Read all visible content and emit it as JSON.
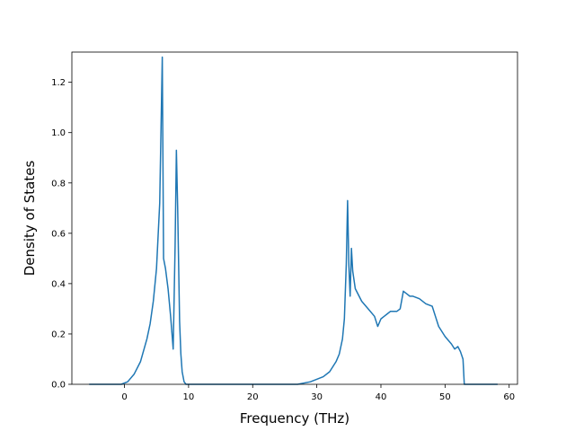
{
  "chart_data": {
    "type": "line",
    "title": "",
    "xlabel": "Frequency (THz)",
    "ylabel": "Density of States",
    "xlim": [
      -8.2,
      61.3
    ],
    "ylim": [
      0.0,
      1.32
    ],
    "xticks": [
      0,
      10,
      20,
      30,
      40,
      50,
      60
    ],
    "yticks": [
      0.0,
      0.2,
      0.4,
      0.6,
      0.8,
      1.0,
      1.2
    ],
    "ytick_labels": [
      "0.0",
      "0.2",
      "0.4",
      "0.6",
      "0.8",
      "1.0",
      "1.2"
    ],
    "grid": false,
    "legend": "none",
    "series": [
      {
        "color": "#1f77b4",
        "x": [
          -5.5,
          -2.0,
          -0.5,
          0.5,
          1.5,
          2.5,
          3.5,
          4.0,
          4.5,
          5.0,
          5.5,
          5.9,
          6.1,
          6.4,
          6.8,
          7.2,
          7.6,
          7.9,
          8.1,
          8.3,
          8.6,
          8.8,
          9.0,
          9.3,
          9.6,
          10.0,
          20.0,
          27.0,
          29.0,
          31.0,
          32.0,
          33.0,
          33.5,
          34.0,
          34.3,
          34.6,
          34.8,
          35.0,
          35.2,
          35.4,
          35.6,
          36.0,
          37.0,
          38.0,
          39.0,
          39.5,
          40.0,
          40.5,
          41.0,
          41.5,
          42.0,
          42.5,
          43.0,
          43.5,
          44.0,
          44.5,
          45.0,
          46.0,
          47.0,
          48.0,
          48.5,
          49.0,
          50.0,
          51.0,
          51.5,
          52.0,
          52.4,
          52.8,
          53.0,
          53.5,
          58.2
        ],
        "y": [
          0.0,
          0.0,
          0.0,
          0.01,
          0.04,
          0.09,
          0.18,
          0.24,
          0.33,
          0.46,
          0.72,
          1.3,
          0.5,
          0.46,
          0.38,
          0.27,
          0.14,
          0.55,
          0.93,
          0.7,
          0.25,
          0.12,
          0.05,
          0.01,
          0.0,
          0.0,
          0.0,
          0.0,
          0.01,
          0.03,
          0.05,
          0.09,
          0.12,
          0.18,
          0.26,
          0.48,
          0.73,
          0.47,
          0.35,
          0.54,
          0.45,
          0.38,
          0.33,
          0.3,
          0.27,
          0.23,
          0.26,
          0.27,
          0.28,
          0.29,
          0.29,
          0.29,
          0.3,
          0.37,
          0.36,
          0.35,
          0.35,
          0.34,
          0.32,
          0.31,
          0.27,
          0.23,
          0.19,
          0.16,
          0.14,
          0.15,
          0.13,
          0.1,
          0.0,
          0.0,
          0.0
        ]
      }
    ]
  }
}
